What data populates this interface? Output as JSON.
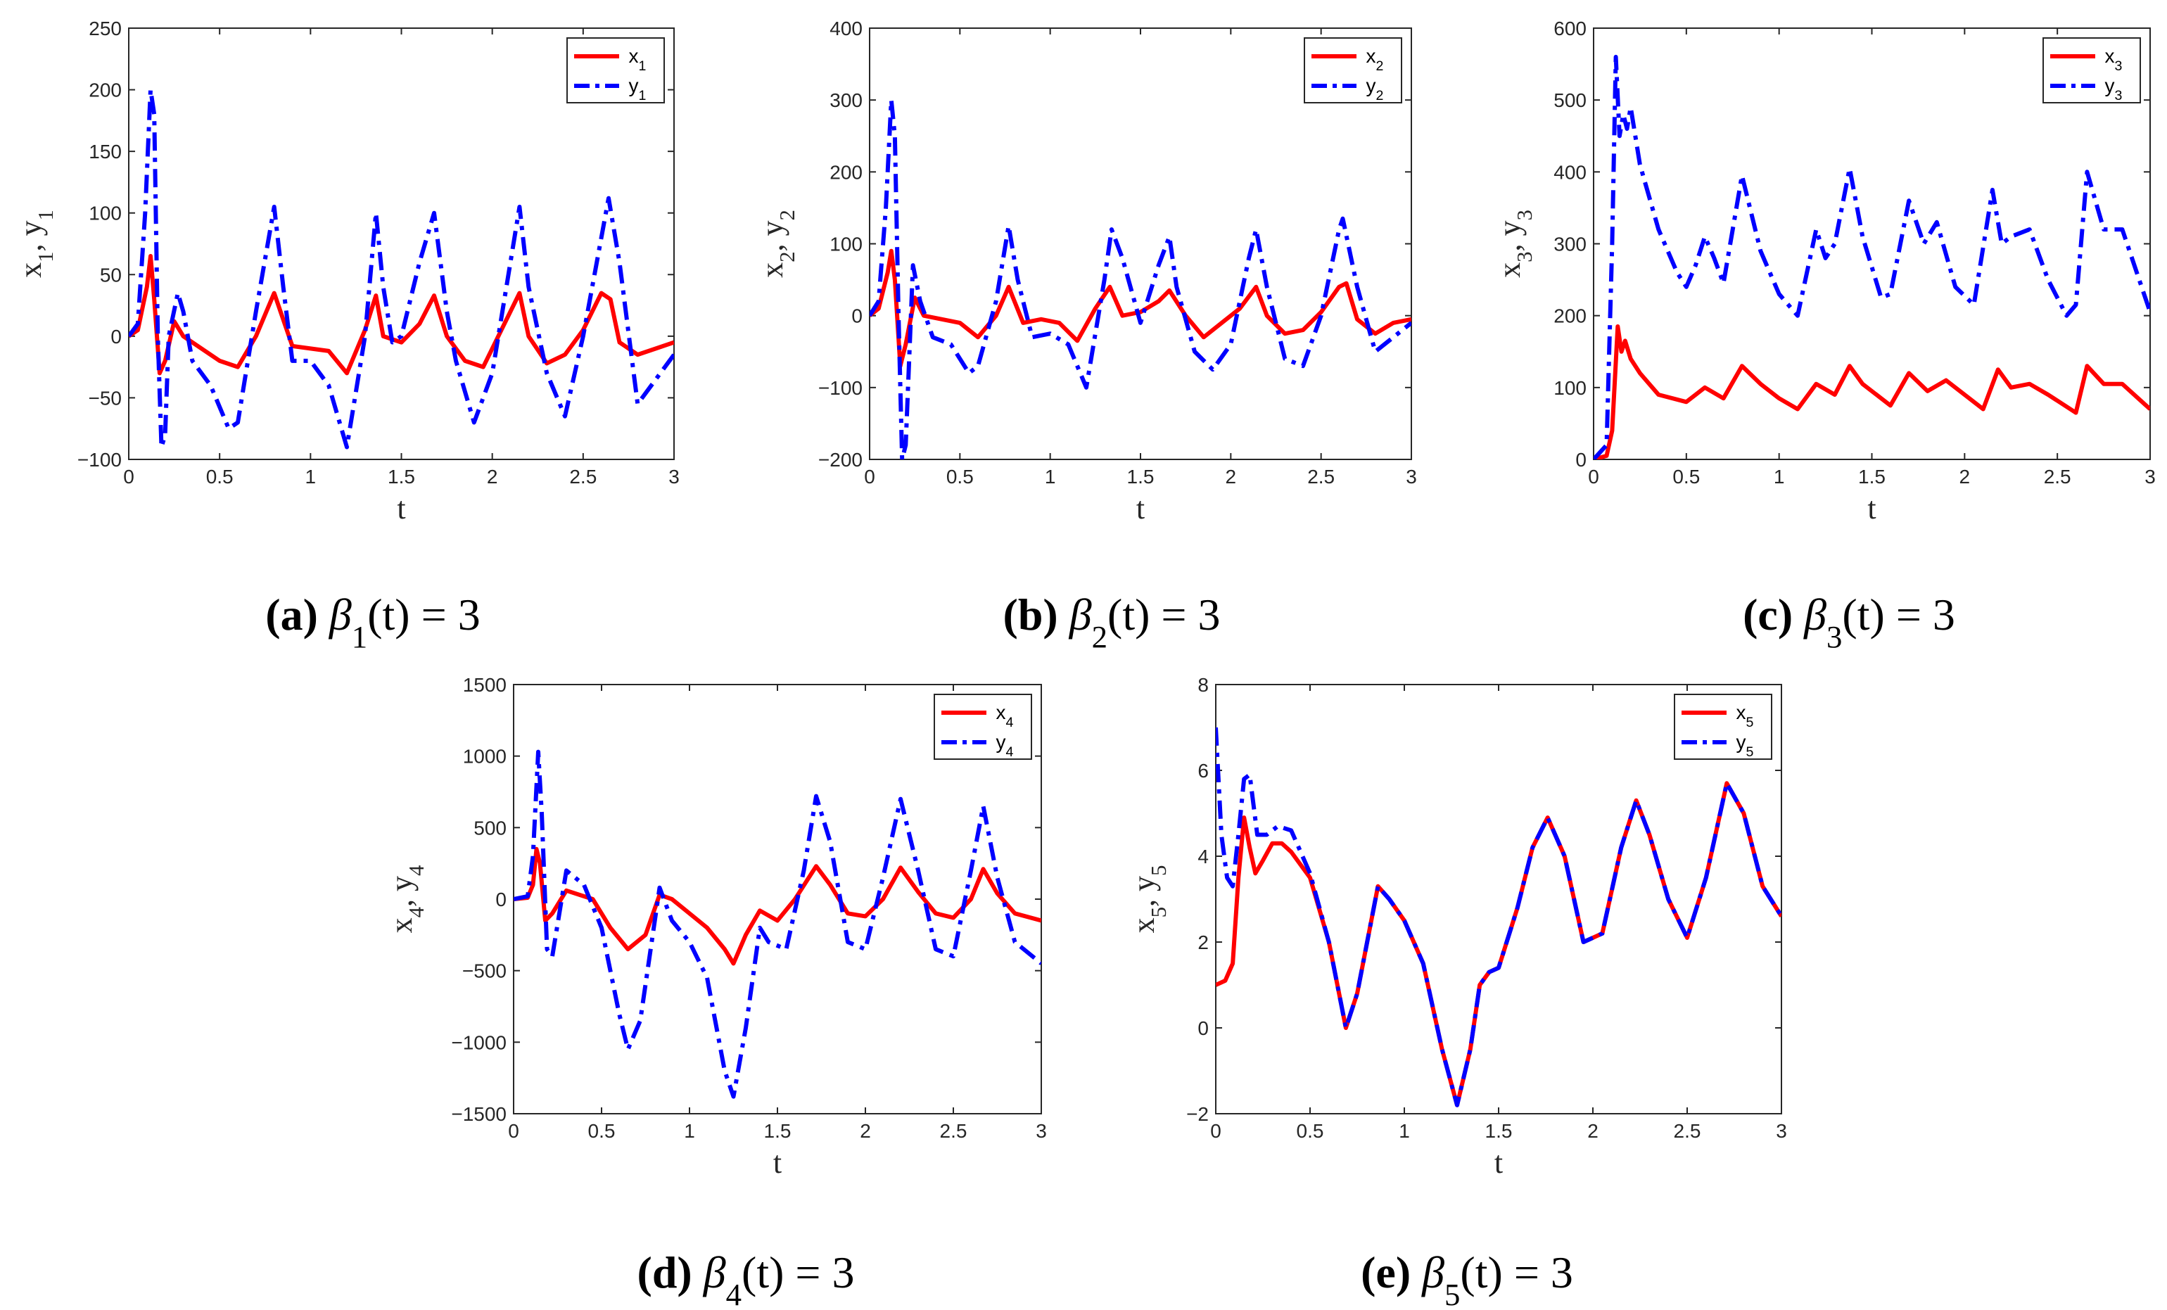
{
  "chart_data": [
    {
      "id": "a",
      "type": "line",
      "xlabel": "t",
      "ylabel": "x₁, y₁",
      "xlim": [
        0,
        3
      ],
      "ylim": [
        -100,
        250
      ],
      "xticks": [
        "0",
        "0.5",
        "1",
        "1.5",
        "2",
        "2.5",
        "3"
      ],
      "yticks": [
        "250",
        "200",
        "150",
        "100",
        "50",
        "0",
        "−50",
        "−100"
      ],
      "ytick_values": [
        250,
        200,
        150,
        100,
        50,
        0,
        -50,
        -100
      ],
      "caption": {
        "letter": "(a)",
        "beta": "β",
        "sub": "1",
        "rest": "(t) = 3"
      },
      "legend": [
        "x₁",
        "y₁"
      ],
      "series": [
        {
          "name": "x₁",
          "color": "#ff0000",
          "style": "solid",
          "x": [
            0,
            0.05,
            0.1,
            0.12,
            0.14,
            0.17,
            0.2,
            0.25,
            0.3,
            0.4,
            0.5,
            0.6,
            0.7,
            0.8,
            0.9,
            1.0,
            1.1,
            1.2,
            1.3,
            1.36,
            1.4,
            1.5,
            1.6,
            1.68,
            1.75,
            1.85,
            1.95,
            2.05,
            2.15,
            2.2,
            2.3,
            2.4,
            2.5,
            2.6,
            2.65,
            2.7,
            2.8,
            2.9,
            3.0
          ],
          "y": [
            0,
            5,
            40,
            65,
            30,
            -30,
            -20,
            12,
            0,
            -10,
            -20,
            -25,
            0,
            35,
            -8,
            -10,
            -12,
            -30,
            5,
            33,
            0,
            -5,
            10,
            33,
            0,
            -20,
            -25,
            5,
            35,
            0,
            -22,
            -15,
            5,
            35,
            30,
            -5,
            -15,
            -10,
            -5
          ]
        },
        {
          "name": "y₁",
          "color": "#0000ff",
          "style": "dashdot",
          "x": [
            0,
            0.05,
            0.09,
            0.12,
            0.14,
            0.16,
            0.18,
            0.2,
            0.22,
            0.27,
            0.3,
            0.35,
            0.45,
            0.55,
            0.6,
            0.7,
            0.8,
            0.85,
            0.9,
            1.0,
            1.1,
            1.2,
            1.3,
            1.36,
            1.4,
            1.45,
            1.5,
            1.6,
            1.68,
            1.75,
            1.8,
            1.9,
            2.0,
            2.1,
            2.15,
            2.2,
            2.3,
            2.4,
            2.5,
            2.6,
            2.64,
            2.7,
            2.8,
            3.0
          ],
          "y": [
            0,
            10,
            100,
            200,
            180,
            0,
            -90,
            -80,
            0,
            35,
            20,
            -20,
            -40,
            -75,
            -70,
            20,
            105,
            40,
            -20,
            -20,
            -40,
            -90,
            0,
            100,
            40,
            -5,
            0,
            60,
            100,
            20,
            -20,
            -70,
            -30,
            60,
            105,
            40,
            -30,
            -65,
            0,
            80,
            112,
            60,
            -55,
            -15
          ]
        }
      ]
    },
    {
      "id": "b",
      "type": "line",
      "xlabel": "t",
      "ylabel": "x₂, y₂",
      "xlim": [
        0,
        3
      ],
      "ylim": [
        -200,
        400
      ],
      "xticks": [
        "0",
        "0.5",
        "1",
        "1.5",
        "2",
        "2.5",
        "3"
      ],
      "yticks": [
        "400",
        "300",
        "200",
        "100",
        "0",
        "−100",
        "−200"
      ],
      "ytick_values": [
        400,
        300,
        200,
        100,
        0,
        -100,
        -200
      ],
      "caption": {
        "letter": "(b)",
        "beta": "β",
        "sub": "2",
        "rest": "(t) = 3"
      },
      "legend": [
        "x₂",
        "y₂"
      ],
      "series": [
        {
          "name": "x₂",
          "color": "#ff0000",
          "style": "solid",
          "x": [
            0,
            0.05,
            0.1,
            0.12,
            0.14,
            0.17,
            0.2,
            0.25,
            0.3,
            0.4,
            0.5,
            0.6,
            0.7,
            0.77,
            0.85,
            0.95,
            1.05,
            1.15,
            1.25,
            1.33,
            1.4,
            1.5,
            1.6,
            1.66,
            1.75,
            1.85,
            1.95,
            2.05,
            2.14,
            2.2,
            2.3,
            2.4,
            2.5,
            2.6,
            2.64,
            2.7,
            2.8,
            2.9,
            3.0
          ],
          "y": [
            0,
            10,
            60,
            90,
            50,
            -70,
            -40,
            25,
            0,
            -5,
            -10,
            -30,
            0,
            40,
            -10,
            -5,
            -10,
            -35,
            10,
            40,
            0,
            5,
            20,
            35,
            0,
            -30,
            -10,
            10,
            40,
            0,
            -25,
            -20,
            5,
            40,
            45,
            -5,
            -25,
            -10,
            -5
          ]
        },
        {
          "name": "y₂",
          "color": "#0000ff",
          "style": "dashdot",
          "x": [
            0,
            0.05,
            0.09,
            0.12,
            0.14,
            0.16,
            0.18,
            0.2,
            0.24,
            0.28,
            0.35,
            0.45,
            0.55,
            0.6,
            0.7,
            0.77,
            0.82,
            0.9,
            1.0,
            1.1,
            1.2,
            1.3,
            1.34,
            1.4,
            1.5,
            1.6,
            1.66,
            1.7,
            1.8,
            1.9,
            2.0,
            2.1,
            2.14,
            2.2,
            2.3,
            2.4,
            2.5,
            2.6,
            2.62,
            2.7,
            2.8,
            3.0
          ],
          "y": [
            0,
            20,
            150,
            300,
            250,
            0,
            -200,
            -180,
            70,
            20,
            -30,
            -40,
            -80,
            -70,
            20,
            125,
            50,
            -30,
            -25,
            -40,
            -100,
            50,
            120,
            80,
            -10,
            70,
            110,
            40,
            -50,
            -75,
            -40,
            80,
            120,
            40,
            -60,
            -70,
            0,
            120,
            135,
            40,
            -50,
            -10
          ]
        }
      ]
    },
    {
      "id": "c",
      "type": "line",
      "xlabel": "t",
      "ylabel": "x₃, y₃",
      "xlim": [
        0,
        3
      ],
      "ylim": [
        0,
        600
      ],
      "xticks": [
        "0",
        "0.5",
        "1",
        "1.5",
        "2",
        "2.5",
        "3"
      ],
      "yticks": [
        "600",
        "500",
        "400",
        "300",
        "200",
        "100",
        "0"
      ],
      "ytick_values": [
        600,
        500,
        400,
        300,
        200,
        100,
        0
      ],
      "caption": {
        "letter": "(c)",
        "beta": "β",
        "sub": "3",
        "rest": "(t) = 3"
      },
      "legend": [
        "x₃",
        "y₃"
      ],
      "series": [
        {
          "name": "x₃",
          "color": "#ff0000",
          "style": "solid",
          "x": [
            0,
            0.07,
            0.1,
            0.13,
            0.15,
            0.17,
            0.2,
            0.25,
            0.35,
            0.5,
            0.6,
            0.7,
            0.8,
            0.9,
            1.0,
            1.1,
            1.2,
            1.3,
            1.38,
            1.45,
            1.6,
            1.7,
            1.8,
            1.9,
            2.0,
            2.1,
            2.18,
            2.25,
            2.35,
            2.45,
            2.6,
            2.66,
            2.75,
            2.85,
            3.0
          ],
          "y": [
            0,
            5,
            40,
            185,
            150,
            165,
            140,
            120,
            90,
            80,
            100,
            85,
            130,
            105,
            85,
            70,
            105,
            90,
            130,
            105,
            75,
            120,
            95,
            110,
            90,
            70,
            125,
            100,
            105,
            90,
            65,
            130,
            105,
            105,
            70
          ]
        },
        {
          "name": "y₃",
          "color": "#0000ff",
          "style": "dashdot",
          "x": [
            0,
            0.07,
            0.1,
            0.12,
            0.14,
            0.16,
            0.18,
            0.2,
            0.25,
            0.35,
            0.45,
            0.5,
            0.55,
            0.6,
            0.65,
            0.7,
            0.8,
            0.9,
            1.0,
            1.1,
            1.2,
            1.25,
            1.3,
            1.38,
            1.45,
            1.55,
            1.6,
            1.7,
            1.78,
            1.85,
            1.95,
            2.05,
            2.15,
            2.2,
            2.25,
            2.35,
            2.45,
            2.55,
            2.6,
            2.66,
            2.75,
            2.85,
            3.0
          ],
          "y": [
            0,
            20,
            300,
            560,
            450,
            480,
            460,
            490,
            410,
            320,
            260,
            240,
            270,
            310,
            280,
            245,
            395,
            290,
            230,
            200,
            320,
            280,
            300,
            405,
            310,
            225,
            230,
            360,
            300,
            330,
            240,
            215,
            375,
            300,
            310,
            320,
            250,
            200,
            215,
            400,
            320,
            320,
            205
          ]
        }
      ]
    },
    {
      "id": "d",
      "type": "line",
      "xlabel": "t",
      "ylabel": "x₄, y₄",
      "xlim": [
        0,
        3
      ],
      "ylim": [
        -1500,
        1500
      ],
      "xticks": [
        "0",
        "0.5",
        "1",
        "1.5",
        "2",
        "2.5",
        "3"
      ],
      "yticks": [
        "1500",
        "1000",
        "500",
        "0",
        "−500",
        "−1000",
        "−1500"
      ],
      "ytick_values": [
        1500,
        1000,
        500,
        0,
        -500,
        -1000,
        -1500
      ],
      "caption": {
        "letter": "(d)",
        "beta": "β",
        "sub": "4",
        "rest": "(t) = 3"
      },
      "legend": [
        "x₄",
        "y₄"
      ],
      "series": [
        {
          "name": "x₄",
          "color": "#ff0000",
          "style": "solid",
          "x": [
            0,
            0.08,
            0.11,
            0.13,
            0.15,
            0.18,
            0.22,
            0.3,
            0.45,
            0.55,
            0.65,
            0.75,
            0.83,
            0.9,
            1.0,
            1.1,
            1.2,
            1.25,
            1.32,
            1.4,
            1.5,
            1.6,
            1.72,
            1.8,
            1.9,
            2.0,
            2.1,
            2.2,
            2.3,
            2.4,
            2.5,
            2.6,
            2.67,
            2.75,
            2.85,
            3.0
          ],
          "y": [
            0,
            10,
            100,
            350,
            250,
            -150,
            -100,
            60,
            0,
            -200,
            -350,
            -250,
            30,
            0,
            -100,
            -200,
            -350,
            -450,
            -250,
            -80,
            -150,
            0,
            230,
            100,
            -100,
            -120,
            0,
            220,
            50,
            -100,
            -130,
            0,
            210,
            40,
            -100,
            -150
          ]
        },
        {
          "name": "y₄",
          "color": "#0000ff",
          "style": "dashdot",
          "x": [
            0,
            0.08,
            0.11,
            0.14,
            0.16,
            0.19,
            0.22,
            0.3,
            0.4,
            0.5,
            0.6,
            0.65,
            0.72,
            0.83,
            0.9,
            1.0,
            1.1,
            1.2,
            1.25,
            1.32,
            1.4,
            1.45,
            1.55,
            1.65,
            1.72,
            1.8,
            1.9,
            2.0,
            2.1,
            2.2,
            2.3,
            2.4,
            2.5,
            2.6,
            2.67,
            2.75,
            2.85,
            3.0
          ],
          "y": [
            0,
            20,
            300,
            1030,
            600,
            -350,
            -400,
            200,
            100,
            -200,
            -800,
            -1050,
            -850,
            80,
            -150,
            -300,
            -550,
            -1200,
            -1380,
            -900,
            -200,
            -300,
            -350,
            200,
            720,
            400,
            -300,
            -350,
            150,
            700,
            200,
            -350,
            -400,
            200,
            650,
            150,
            -300,
            -450
          ]
        }
      ]
    },
    {
      "id": "e",
      "type": "line",
      "xlabel": "t",
      "ylabel": "x₅, y₅",
      "xlim": [
        0,
        3
      ],
      "ylim": [
        -2,
        8
      ],
      "xticks": [
        "0",
        "0.5",
        "1",
        "1.5",
        "2",
        "2.5",
        "3"
      ],
      "yticks": [
        "8",
        "6",
        "4",
        "2",
        "0",
        "−2"
      ],
      "ytick_values": [
        8,
        6,
        4,
        2,
        0,
        -2
      ],
      "caption": {
        "letter": "(e)",
        "beta": "β",
        "sub": "5",
        "rest": "(t) = 3"
      },
      "legend": [
        "x₅",
        "y₅"
      ],
      "series": [
        {
          "name": "x₅",
          "color": "#ff0000",
          "style": "solid",
          "x": [
            0,
            0.05,
            0.09,
            0.12,
            0.15,
            0.18,
            0.21,
            0.25,
            0.3,
            0.35,
            0.4,
            0.5,
            0.6,
            0.69,
            0.75,
            0.86,
            0.92,
            1.0,
            1.1,
            1.2,
            1.28,
            1.35,
            1.4,
            1.45,
            1.5,
            1.6,
            1.68,
            1.76,
            1.85,
            1.95,
            2.05,
            2.15,
            2.23,
            2.3,
            2.4,
            2.5,
            2.6,
            2.71,
            2.8,
            2.9,
            3.0
          ],
          "y": [
            1,
            1.1,
            1.5,
            3.5,
            4.9,
            4.2,
            3.6,
            3.9,
            4.3,
            4.3,
            4.1,
            3.5,
            2,
            0,
            0.8,
            3.3,
            3,
            2.5,
            1.5,
            -0.5,
            -1.8,
            -0.5,
            1,
            1.3,
            1.4,
            2.8,
            4.2,
            4.9,
            4,
            2,
            2.2,
            4.2,
            5.3,
            4.5,
            3,
            2.1,
            3.5,
            5.7,
            5,
            3.3,
            2.6
          ]
        },
        {
          "name": "y₅",
          "color": "#0000ff",
          "style": "dashdot",
          "x": [
            0,
            0.03,
            0.06,
            0.09,
            0.12,
            0.15,
            0.18,
            0.22,
            0.27,
            0.33,
            0.4,
            0.5,
            0.6,
            0.69,
            0.75,
            0.86,
            0.92,
            1.0,
            1.1,
            1.2,
            1.28,
            1.35,
            1.4,
            1.45,
            1.5,
            1.6,
            1.68,
            1.76,
            1.85,
            1.95,
            2.05,
            2.15,
            2.23,
            2.3,
            2.4,
            2.5,
            2.6,
            2.71,
            2.8,
            2.9,
            3.0
          ],
          "y": [
            7,
            4.5,
            3.5,
            3.3,
            4.5,
            5.8,
            5.9,
            4.5,
            4.5,
            4.7,
            4.6,
            3.6,
            2,
            0,
            0.8,
            3.3,
            3,
            2.5,
            1.5,
            -0.5,
            -1.8,
            -0.5,
            1,
            1.3,
            1.4,
            2.8,
            4.2,
            4.9,
            4,
            2,
            2.2,
            4.2,
            5.3,
            4.5,
            3,
            2.1,
            3.5,
            5.7,
            5,
            3.3,
            2.6
          ]
        }
      ]
    }
  ]
}
